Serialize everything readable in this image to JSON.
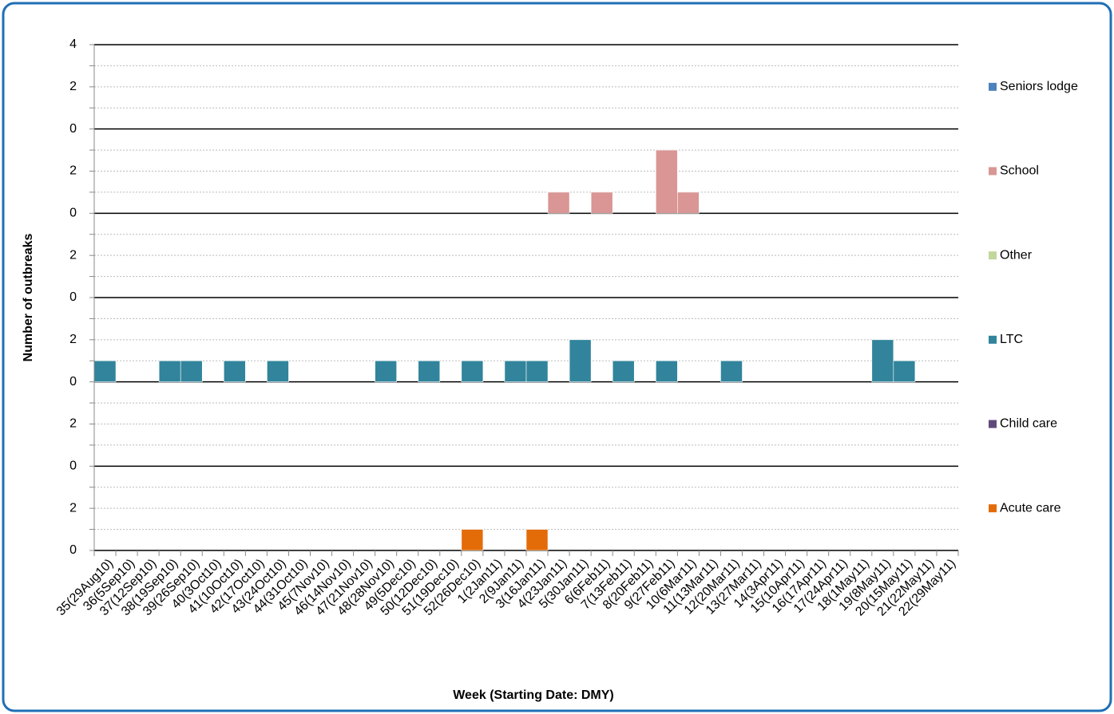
{
  "chart_data": {
    "type": "bar",
    "x_label": "Week (Starting Date: DMY)",
    "y_label": "Number of outbreaks",
    "categories": [
      "35(29Aug10)",
      "36(5Sep10)",
      "37(12Sep10)",
      "38(19Sep10)",
      "39(26Sep10)",
      "40(3Oct10)",
      "41(10Oct10)",
      "42(17Oct10)",
      "43(24Oct10)",
      "44(31Oct10)",
      "45(7Nov10)",
      "46(14Nov10)",
      "47(21Nov10)",
      "48(28Nov10)",
      "49(5Dec10)",
      "50(12Dec10)",
      "51(19Dec10)",
      "52(26Dec10)",
      "1(2Jan11)",
      "2(9Jan11)",
      "3(16Jan11)",
      "4(23Jan11)",
      "5(30Jan11)",
      "6(6Feb11)",
      "7(13Feb11)",
      "8(20Feb11)",
      "9(27Feb11)",
      "10(6Mar11)",
      "11(13Mar11)",
      "12(20Mar11)",
      "13(27Mar11)",
      "14(3Apr11)",
      "15(10Apr11)",
      "16(17Apr11)",
      "17(24Apr11)",
      "18(1May11)",
      "19(8May11)",
      "20(15May11)",
      "21(22May11)",
      "22(29May11)"
    ],
    "series": [
      {
        "name": "Seniors lodge",
        "color": "#4f81bd",
        "values": [
          0,
          0,
          0,
          0,
          0,
          0,
          0,
          0,
          0,
          0,
          0,
          0,
          0,
          0,
          0,
          0,
          0,
          0,
          0,
          0,
          0,
          0,
          0,
          0,
          0,
          0,
          0,
          0,
          0,
          0,
          0,
          0,
          0,
          0,
          0,
          0,
          0,
          0,
          0,
          0
        ]
      },
      {
        "name": "School",
        "color": "#d99694",
        "values": [
          0,
          0,
          0,
          0,
          0,
          0,
          0,
          0,
          0,
          0,
          0,
          0,
          0,
          0,
          0,
          0,
          0,
          0,
          0,
          0,
          0,
          1,
          0,
          1,
          0,
          0,
          3,
          1,
          0,
          0,
          0,
          0,
          0,
          0,
          0,
          0,
          0,
          0,
          0,
          0
        ]
      },
      {
        "name": "Other",
        "color": "#c3d69b",
        "values": [
          0,
          0,
          0,
          0,
          0,
          0,
          0,
          0,
          0,
          0,
          0,
          0,
          0,
          0,
          0,
          0,
          0,
          0,
          0,
          0,
          0,
          0,
          0,
          0,
          0,
          0,
          0,
          0,
          0,
          0,
          0,
          0,
          0,
          0,
          0,
          0,
          0,
          0,
          0,
          0
        ]
      },
      {
        "name": "LTC",
        "color": "#31849b",
        "values": [
          1,
          0,
          0,
          1,
          1,
          0,
          1,
          0,
          1,
          0,
          0,
          0,
          0,
          1,
          0,
          1,
          0,
          1,
          0,
          1,
          1,
          0,
          2,
          0,
          1,
          0,
          1,
          0,
          0,
          1,
          0,
          0,
          0,
          0,
          0,
          0,
          2,
          1,
          0,
          0
        ]
      },
      {
        "name": "Child care",
        "color": "#604a7b",
        "values": [
          0,
          0,
          0,
          0,
          0,
          0,
          0,
          0,
          0,
          0,
          0,
          0,
          0,
          0,
          0,
          0,
          0,
          0,
          0,
          0,
          0,
          0,
          0,
          0,
          0,
          0,
          0,
          0,
          0,
          0,
          0,
          0,
          0,
          0,
          0,
          0,
          0,
          0,
          0,
          0
        ]
      },
      {
        "name": "Acute care",
        "color": "#e36c09",
        "values": [
          0,
          0,
          0,
          0,
          0,
          0,
          0,
          0,
          0,
          0,
          0,
          0,
          0,
          0,
          0,
          0,
          0,
          1,
          0,
          0,
          1,
          0,
          0,
          0,
          0,
          0,
          0,
          0,
          0,
          0,
          0,
          0,
          0,
          0,
          0,
          0,
          0,
          0,
          0,
          0
        ]
      }
    ],
    "ylim": [
      0,
      4
    ],
    "yticks": [
      0,
      2,
      4
    ],
    "minor_yticks": [
      1,
      3
    ],
    "grid": true
  }
}
